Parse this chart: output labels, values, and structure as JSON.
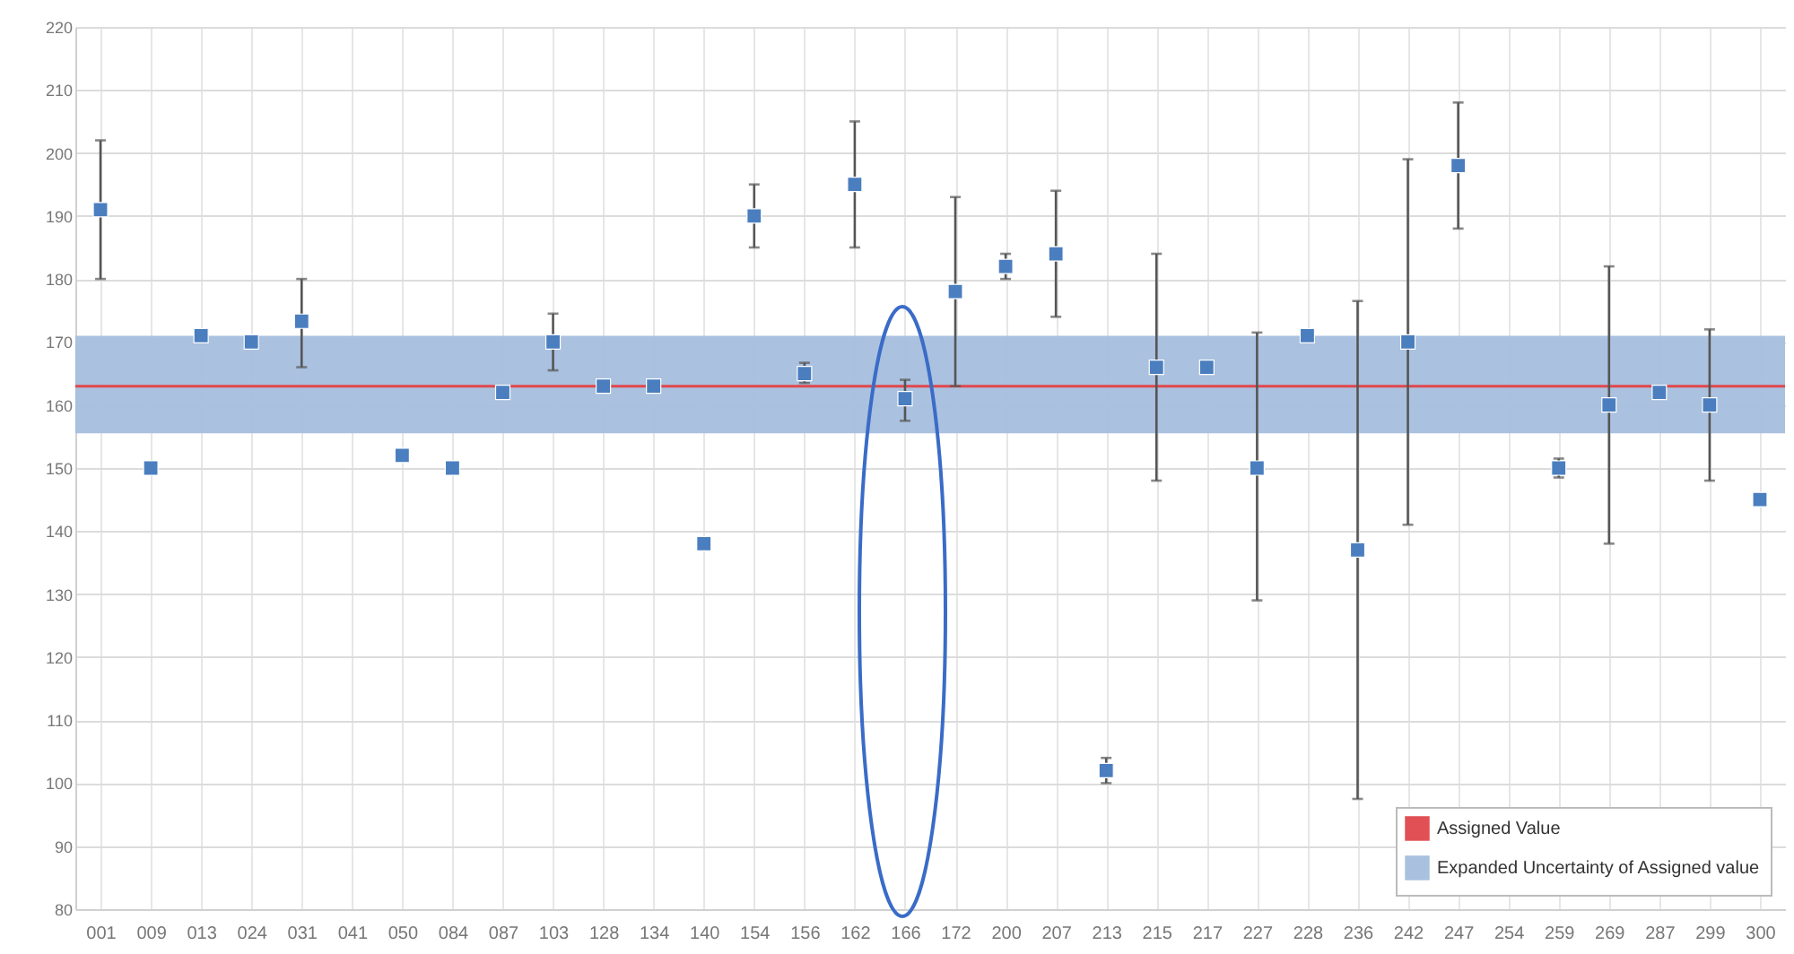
{
  "chart_data": {
    "type": "scatter",
    "categories": [
      "001",
      "009",
      "013",
      "024",
      "031",
      "041",
      "050",
      "084",
      "087",
      "103",
      "128",
      "134",
      "140",
      "154",
      "156",
      "162",
      "166",
      "172",
      "200",
      "207",
      "213",
      "215",
      "217",
      "227",
      "228",
      "236",
      "242",
      "247",
      "254",
      "259",
      "269",
      "287",
      "299",
      "300"
    ],
    "series": [
      {
        "color": "#4a7ebf",
        "values": [
          191,
          150,
          171,
          170,
          173.3,
          null,
          152,
          150,
          162,
          170,
          163,
          163,
          138,
          190,
          165,
          195,
          161,
          178,
          182,
          184,
          102,
          166,
          166,
          150,
          171,
          137,
          170,
          198,
          null,
          150,
          160,
          162,
          160,
          145
        ],
        "errors": [
          [
            180,
            202
          ],
          null,
          null,
          null,
          [
            166,
            180
          ],
          null,
          null,
          null,
          null,
          [
            165.5,
            174.5
          ],
          null,
          null,
          null,
          [
            185,
            195
          ],
          [
            163.5,
            166.7
          ],
          [
            185,
            205
          ],
          [
            157.5,
            164
          ],
          [
            163,
            193
          ],
          [
            180,
            184
          ],
          [
            174,
            194
          ],
          [
            100,
            104
          ],
          [
            148,
            184
          ],
          null,
          [
            129,
            171.5
          ],
          null,
          [
            97.5,
            176.5
          ],
          [
            141,
            199
          ],
          [
            188,
            208
          ],
          null,
          [
            148.5,
            151.5
          ],
          [
            138,
            182
          ],
          null,
          [
            148,
            172
          ],
          null
        ]
      }
    ],
    "ref_lines": [
      {
        "axis": "y",
        "value": 163,
        "label": "Assigned Value",
        "color": "#e0474c"
      }
    ],
    "bands": [
      {
        "axis": "y",
        "from": 155.5,
        "to": 171,
        "label": "Expanded Uncertainty of Assigned value",
        "color": "#a5bedd"
      }
    ],
    "ylim": [
      80,
      220
    ],
    "yticks": [
      80,
      90,
      100,
      110,
      120,
      130,
      140,
      150,
      160,
      170,
      180,
      190,
      200,
      210,
      220
    ],
    "marker": "square",
    "grid": true,
    "legend": "bottom right"
  }
}
